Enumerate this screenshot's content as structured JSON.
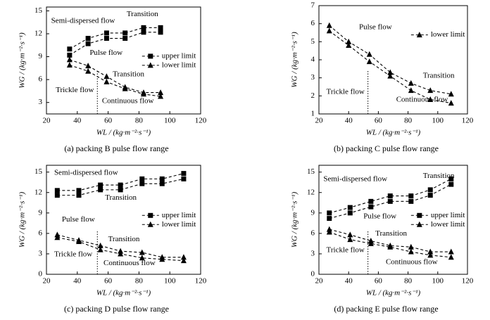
{
  "chart_data": [
    {
      "type": "line",
      "caption": "(a) packing B pulse flow range",
      "xlabel": "WL / (kg·m⁻²·s⁻¹)",
      "ylabel": "WG / (kg·m⁻²·s⁻¹)",
      "xlim": [
        20,
        120
      ],
      "xticks": [
        20,
        40,
        60,
        80,
        100,
        120
      ],
      "ylim": [
        1.5,
        15.5
      ],
      "yticks": [
        3,
        6,
        9,
        12,
        15
      ],
      "divider": 53,
      "legend": "right",
      "annotations": [
        "Semi-dispersed flow",
        "Transition",
        "Pulse flow",
        "Transition",
        "Trickle flow",
        "Continuous flow"
      ],
      "series": [
        {
          "name": "upper limit",
          "marker": "square",
          "color": "#000000",
          "x": [
            35,
            47,
            59,
            71,
            83,
            94
          ],
          "bounds": {
            "high": [
              10.0,
              11.4,
              12.1,
              12.1,
              12.8,
              12.8
            ],
            "low": [
              9.2,
              10.7,
              11.4,
              11.4,
              12.2,
              12.2
            ]
          }
        },
        {
          "name": "lower limit",
          "marker": "triangle",
          "color": "#000000",
          "x": [
            35,
            47,
            59,
            71,
            83,
            94
          ],
          "bounds": {
            "high": [
              8.6,
              7.8,
              6.4,
              5.0,
              4.3,
              4.3
            ],
            "low": [
              7.9,
              7.1,
              5.7,
              4.8,
              4.1,
              3.8
            ]
          }
        }
      ]
    },
    {
      "type": "line",
      "caption": "(b) packing C pulse flow range",
      "xlabel": "WL / (kg·m⁻²·s⁻¹)",
      "ylabel": "WG / (kg·m⁻²·s⁻¹)",
      "xlim": [
        20,
        120
      ],
      "xticks": [
        20,
        40,
        60,
        80,
        100,
        120
      ],
      "ylim": [
        1,
        7
      ],
      "yticks": [
        1,
        2,
        3,
        4,
        5,
        6,
        7
      ],
      "divider": 53,
      "legend": "right",
      "annotations": [
        "Pulse flow",
        "Trickle flow",
        "Continuous flow",
        "Transition"
      ],
      "series": [
        {
          "name": "lower limit",
          "marker": "triangle",
          "color": "#000000",
          "x": [
            27,
            40,
            54,
            68,
            82,
            95,
            109
          ],
          "bounds": {
            "high": [
              5.9,
              5.0,
              4.3,
              3.3,
              2.7,
              2.3,
              2.1
            ],
            "low": [
              5.6,
              4.8,
              3.9,
              3.1,
              2.3,
              1.8,
              1.6
            ]
          }
        }
      ]
    },
    {
      "type": "line",
      "caption": "(c) packing D pulse flow range",
      "xlabel": "WL / (kg·m⁻²·s⁻¹)",
      "ylabel": "WG / (kg·m⁻²·s⁻¹)",
      "xlim": [
        20,
        120
      ],
      "xticks": [
        20,
        40,
        60,
        80,
        100,
        120
      ],
      "ylim": [
        0,
        16
      ],
      "yticks": [
        0,
        3,
        6,
        9,
        12,
        15
      ],
      "divider": 53,
      "legend": "right",
      "annotations": [
        "Semi-dispersed flow",
        "Transition",
        "Pulse flow",
        "Transition",
        "Trickle flow",
        "Continuous flow"
      ],
      "series": [
        {
          "name": "upper limit",
          "marker": "square",
          "color": "#000000",
          "x": [
            27,
            41,
            55,
            68,
            82,
            95,
            109
          ],
          "bounds": {
            "high": [
              12.3,
              12.3,
              13.1,
              13.1,
              14.0,
              14.0,
              14.8
            ],
            "low": [
              11.6,
              11.6,
              12.4,
              12.4,
              13.3,
              13.3,
              14.0
            ]
          }
        },
        {
          "name": "lower limit",
          "marker": "triangle",
          "color": "#000000",
          "x": [
            27,
            41,
            55,
            68,
            82,
            95,
            109
          ],
          "bounds": {
            "high": [
              5.8,
              5.0,
              4.2,
              3.4,
              3.2,
              2.5,
              2.5
            ],
            "low": [
              5.4,
              4.8,
              3.6,
              3.0,
              2.4,
              2.2,
              2.0
            ]
          }
        }
      ]
    },
    {
      "type": "line",
      "caption": "(d) packing E pulse flow range",
      "xlabel": "WL / (kg·m⁻²·s⁻¹)",
      "ylabel": "WG / (kg·m⁻²·s⁻¹)",
      "xlim": [
        20,
        120
      ],
      "xticks": [
        20,
        40,
        60,
        80,
        100,
        120
      ],
      "ylim": [
        0,
        16
      ],
      "yticks": [
        0,
        3,
        6,
        9,
        12,
        15
      ],
      "divider": 53,
      "legend": "right",
      "annotations": [
        "Semi-dispersed flow",
        "Transition",
        "Pulse flow",
        "Transition",
        "Trickle flow",
        "Continuous flow"
      ],
      "series": [
        {
          "name": "upper limit",
          "marker": "square",
          "color": "#000000",
          "x": [
            27,
            41,
            55,
            68,
            82,
            95,
            109
          ],
          "bounds": {
            "high": [
              9.0,
              9.8,
              10.7,
              11.5,
              11.5,
              12.4,
              14.0
            ],
            "low": [
              8.2,
              9.0,
              9.9,
              10.7,
              10.7,
              11.6,
              13.2
            ]
          }
        },
        {
          "name": "lower limit",
          "marker": "triangle",
          "color": "#000000",
          "x": [
            27,
            41,
            55,
            68,
            82,
            95,
            109
          ],
          "bounds": {
            "high": [
              6.6,
              5.8,
              4.9,
              4.2,
              4.0,
              3.3,
              3.3
            ],
            "low": [
              6.2,
              5.1,
              4.5,
              4.0,
              3.3,
              2.8,
              2.5
            ]
          }
        }
      ]
    }
  ]
}
